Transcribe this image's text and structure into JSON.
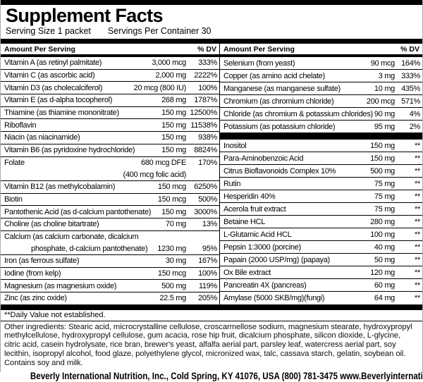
{
  "header": {
    "title": "Supplement Facts",
    "serving_size": "Serving Size 1 packet",
    "servings_per_container": "Servings Per Container 30"
  },
  "table": {
    "amount_header": "Amount Per Serving",
    "dv_header": "% DV",
    "left_rows": [
      {
        "lines": [
          {
            "label": "Vitamin A (as retinyl palmitate)",
            "amount": "3,000 mcg",
            "dv": "333%"
          }
        ]
      },
      {
        "lines": [
          {
            "label": "Vitamin C (as ascorbic acid)",
            "amount": "2,000 mg",
            "dv": "2222%"
          }
        ]
      },
      {
        "lines": [
          {
            "label": "Vitamin D3 (as cholecalciferol)",
            "amount": "20 mcg (800 IU)",
            "dv": "100%"
          }
        ]
      },
      {
        "lines": [
          {
            "label": "Vitamin E (as d-alpha tocopherol)",
            "amount": "268 mg",
            "dv": "1787%"
          }
        ]
      },
      {
        "lines": [
          {
            "label": "Thiamine (as thiamine mononitrate)",
            "amount": "150 mg",
            "dv": "12500%"
          }
        ]
      },
      {
        "lines": [
          {
            "label": "Riboflavin",
            "amount": "150 mg",
            "dv": "11538%"
          }
        ]
      },
      {
        "lines": [
          {
            "label": "Niacin (as niacinamide)",
            "amount": "150 mg",
            "dv": "938%"
          }
        ]
      },
      {
        "lines": [
          {
            "label": "Vitamin B6 (as pyridoxine hydrochloride)",
            "amount": "150 mg",
            "dv": "8824%"
          }
        ]
      },
      {
        "lines": [
          {
            "label": "Folate",
            "amount": "680 mcg DFE",
            "dv": "170%"
          },
          {
            "label": "",
            "amount": "(400 mcg folic acid)",
            "dv": ""
          }
        ]
      },
      {
        "lines": [
          {
            "label": "Vitamin B12 (as methylcobalamin)",
            "amount": "150 mcg",
            "dv": "6250%"
          }
        ]
      },
      {
        "lines": [
          {
            "label": "Biotin",
            "amount": "150 mcg",
            "dv": "500%"
          }
        ]
      },
      {
        "lines": [
          {
            "label": "Pantothenic Acid (as d-calcium pantothenate)",
            "amount": "150 mg",
            "dv": "3000%"
          }
        ]
      },
      {
        "lines": [
          {
            "label": "Choline (as choline bitartrate)",
            "amount": "70 mg",
            "dv": "13%"
          }
        ]
      },
      {
        "lines": [
          {
            "label": "Calcium (as calcium carbonate, dicalcium",
            "amount": "",
            "dv": ""
          },
          {
            "label": "phosphate, d-calcium pantothenate)",
            "indent": true,
            "amount": "1230 mg",
            "dv": "95%"
          }
        ]
      },
      {
        "lines": [
          {
            "label": "Iron (as ferrous sulfate)",
            "amount": "30 mg",
            "dv": "167%"
          }
        ]
      },
      {
        "lines": [
          {
            "label": "Iodine (from kelp)",
            "amount": "150 mcg",
            "dv": "100%"
          }
        ]
      },
      {
        "lines": [
          {
            "label": "Magnesium (as magnesium oxide)",
            "amount": "500 mg",
            "dv": "119%"
          }
        ]
      },
      {
        "lines": [
          {
            "label": "Zinc (as zinc oxide)",
            "amount": "22.5 mg",
            "dv": "205%"
          }
        ]
      }
    ],
    "right_rows": [
      {
        "lines": [
          {
            "label": "Selenium (from yeast)",
            "amount": "90 mcg",
            "dv": "164%"
          }
        ]
      },
      {
        "lines": [
          {
            "label": "Copper (as amino acid chelate)",
            "amount": "3 mg",
            "dv": "333%"
          }
        ]
      },
      {
        "lines": [
          {
            "label": "Manganese (as manganese sulfate)",
            "amount": "10 mg",
            "dv": "435%"
          }
        ]
      },
      {
        "lines": [
          {
            "label": "Chromium (as chromium chloride)",
            "amount": "200 mcg",
            "dv": "571%"
          }
        ]
      },
      {
        "lines": [
          {
            "label": "Chloride (as chromium & potassium chlorides)",
            "amount": "90 mg",
            "dv": "4%"
          }
        ]
      },
      {
        "lines": [
          {
            "label": "Potassium (as potassium chloride)",
            "amount": "95 mg",
            "dv": "2%"
          }
        ]
      },
      {
        "separator": true
      },
      {
        "lines": [
          {
            "label": "Inositol",
            "amount": "150 mg",
            "dv": "**"
          }
        ]
      },
      {
        "lines": [
          {
            "label": "Para-Aminobenzoic Acid",
            "amount": "150 mg",
            "dv": "**"
          }
        ]
      },
      {
        "lines": [
          {
            "label": "Citrus Bioflavonoids Complex 10%",
            "amount": "500 mg",
            "dv": "**"
          }
        ]
      },
      {
        "lines": [
          {
            "label": "Rutin",
            "amount": "75 mg",
            "dv": "**"
          }
        ]
      },
      {
        "lines": [
          {
            "label": "Hesperidin 40%",
            "amount": "75 mg",
            "dv": "**"
          }
        ]
      },
      {
        "lines": [
          {
            "label": "Acerola fruit extract",
            "amount": "75 mg",
            "dv": "**"
          }
        ]
      },
      {
        "lines": [
          {
            "label": "Betaine HCL",
            "amount": "280 mg",
            "dv": "**"
          }
        ]
      },
      {
        "lines": [
          {
            "label": "L-Glutamic Acid HCL",
            "amount": "100 mg",
            "dv": "**"
          }
        ]
      },
      {
        "lines": [
          {
            "label": "Pepsin 1:3000 (porcine)",
            "amount": "40 mg",
            "dv": "**"
          }
        ]
      },
      {
        "lines": [
          {
            "label": "Papain (2000 USP/mg) (papaya)",
            "amount": "50 mg",
            "dv": "**"
          }
        ]
      },
      {
        "lines": [
          {
            "label": "Ox Bile extract",
            "amount": "120 mg",
            "dv": "**"
          }
        ]
      },
      {
        "lines": [
          {
            "label": "Pancreatin 4X (pancreas)",
            "amount": "60 mg",
            "dv": "**"
          }
        ]
      },
      {
        "lines": [
          {
            "label": "Amylase (5000 SKB/mg)(fungi)",
            "amount": "64 mg",
            "dv": "**"
          }
        ]
      }
    ]
  },
  "footnote": "**Daily Value not established.",
  "other_ingredients": "Other ingredients: Stearic acid, microcrystalline cellulose, croscarmellose sodium, magnesium stearate, hydroxypropyl methylcellulose, hydroxypropyl cellulose, gum acacia, rose hip fruit, dicalcium phosphate, silicon dioxide, L-glycine, citric acid, casein hydrolysate, rice bran, brewer's yeast, alfalfa aerial part, parsley leaf, watercress aerial part, soy lecithin, isopropyl alcohol, food glaze, polyethylene glycol, micronized wax, talc, cassava starch, gelatin, soybean oil.",
  "contains": "Contains soy and milk.",
  "footer": "Beverly International Nutrition, Inc., Cold Spring, KY 41076, USA (800) 781-3475 www.Beverlyinternational.com",
  "colors": {
    "ink": "#000000",
    "paper": "#ffffff"
  }
}
